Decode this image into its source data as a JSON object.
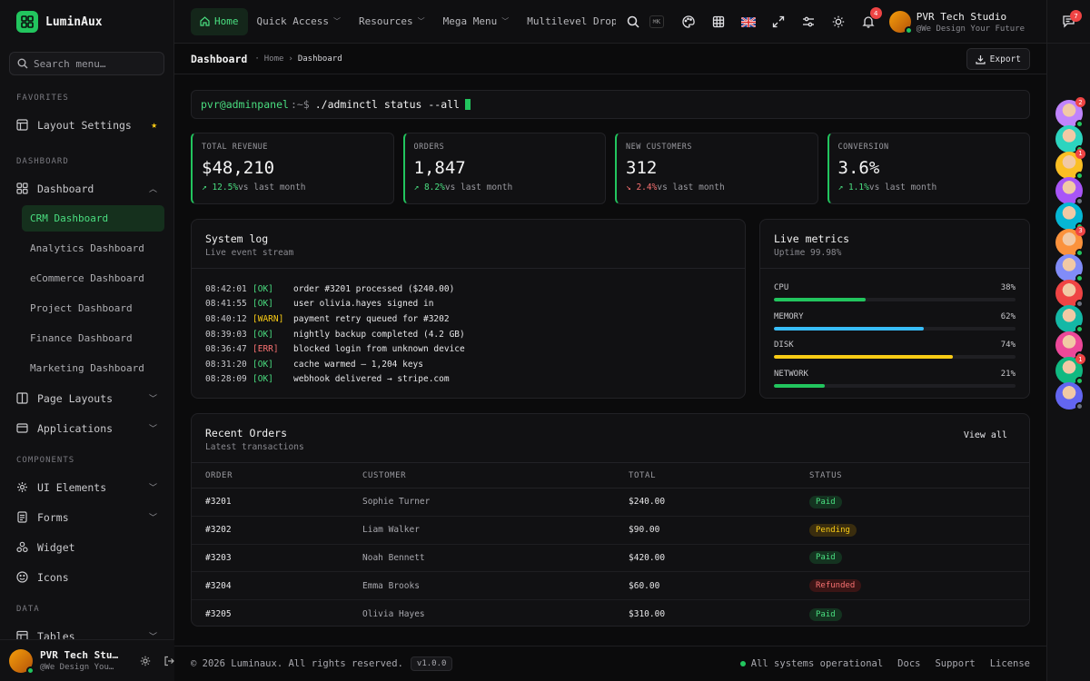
{
  "brand": {
    "name": "LuminAux"
  },
  "search": {
    "placeholder": "Search menu…"
  },
  "sidebar": {
    "favorites_title": "FAVORITES",
    "layout_settings": "Layout Settings",
    "dashboard_title": "DASHBOARD",
    "dashboard": "Dashboard",
    "sub_items": [
      "CRM Dashboard",
      "Analytics Dashboard",
      "eCommerce Dashboard",
      "Project Dashboard",
      "Finance Dashboard",
      "Marketing Dashboard"
    ],
    "page_layouts": "Page Layouts",
    "applications": "Applications",
    "components_title": "COMPONENTS",
    "ui_elements": "UI Elements",
    "forms": "Forms",
    "widget": "Widget",
    "icons": "Icons",
    "data_title": "DATA",
    "tables": "Tables",
    "user_name": "PVR Tech Stu…",
    "user_sub": "@We Design You…"
  },
  "topnav": {
    "home": "Home",
    "quick_access": "Quick Access",
    "resources": "Resources",
    "mega_menu": "Mega Menu",
    "multilevel": "Multilevel Drop",
    "kbd": "⌘K",
    "notif_count": "4",
    "user_name": "PVR Tech Studio",
    "user_sub": "@We Design Your Future"
  },
  "rail": {
    "chat_count": "7",
    "avatars": [
      {
        "badge": "2",
        "status": "#22c55e",
        "color": "#c084fc"
      },
      {
        "badge": "",
        "status": "#22c55e",
        "color": "#2dd4bf"
      },
      {
        "badge": "1",
        "status": "#22c55e",
        "color": "#fbbf24"
      },
      {
        "badge": "",
        "status": "#6b7280",
        "color": "#a855f7"
      },
      {
        "badge": "",
        "status": "#22c55e",
        "color": "#06b6d4"
      },
      {
        "badge": "3",
        "status": "#22c55e",
        "color": "#fb923c"
      },
      {
        "badge": "",
        "status": "#22c55e",
        "color": "#818cf8"
      },
      {
        "badge": "",
        "status": "#6b7280",
        "color": "#ef4444"
      },
      {
        "badge": "",
        "status": "#22c55e",
        "color": "#14b8a6"
      },
      {
        "badge": "",
        "status": "#6b7280",
        "color": "#ec4899"
      },
      {
        "badge": "1",
        "status": "#22c55e",
        "color": "#10b981"
      },
      {
        "badge": "",
        "status": "#6b7280",
        "color": "#6366f1"
      }
    ]
  },
  "subheader": {
    "title": "Dashboard",
    "crumb_home": "Home",
    "crumb_current": "Dashboard",
    "export": "Export"
  },
  "terminal": {
    "user": "pvr@adminpanel",
    "prompt": ":~$",
    "command": "./adminctl status --all"
  },
  "stats": [
    {
      "label": "TOTAL REVENUE",
      "value": "$48,210",
      "change": "12.5%",
      "dir": "up",
      "suffix": "vs last month"
    },
    {
      "label": "ORDERS",
      "value": "1,847",
      "change": "8.2%",
      "dir": "up",
      "suffix": "vs last month"
    },
    {
      "label": "NEW CUSTOMERS",
      "value": "312",
      "change": "2.4%",
      "dir": "down",
      "suffix": "vs last month"
    },
    {
      "label": "CONVERSION",
      "value": "3.6%",
      "change": "1.1%",
      "dir": "up",
      "suffix": "vs last month"
    }
  ],
  "system_log": {
    "title": "System log",
    "subtitle": "Live event stream",
    "entries": [
      {
        "time": "08:42:01",
        "level": "[OK]",
        "type": "ok",
        "msg": "order #3201 processed ($240.00)"
      },
      {
        "time": "08:41:55",
        "level": "[OK]",
        "type": "ok",
        "msg": "user olivia.hayes signed in"
      },
      {
        "time": "08:40:12",
        "level": "[WARN]",
        "type": "warn",
        "msg": "payment retry queued for #3202"
      },
      {
        "time": "08:39:03",
        "level": "[OK]",
        "type": "ok",
        "msg": "nightly backup completed (4.2 GB)"
      },
      {
        "time": "08:36:47",
        "level": "[ERR]",
        "type": "err",
        "msg": "blocked login from unknown device"
      },
      {
        "time": "08:31:20",
        "level": "[OK]",
        "type": "ok",
        "msg": "cache warmed — 1,204 keys"
      },
      {
        "time": "08:28:09",
        "level": "[OK]",
        "type": "ok",
        "msg": "webhook delivered → stripe.com"
      }
    ]
  },
  "live_metrics": {
    "title": "Live metrics",
    "subtitle": "Uptime 99.98%",
    "items": [
      {
        "label": "CPU",
        "value": "38%",
        "pct": 38,
        "color": "#22c55e"
      },
      {
        "label": "MEMORY",
        "value": "62%",
        "pct": 62,
        "color": "#38bdf8"
      },
      {
        "label": "DISK",
        "value": "74%",
        "pct": 74,
        "color": "#facc15"
      },
      {
        "label": "NETWORK",
        "value": "21%",
        "pct": 21,
        "color": "#22c55e"
      }
    ]
  },
  "orders": {
    "title": "Recent Orders",
    "subtitle": "Latest transactions",
    "view_all": "View all",
    "columns": [
      "ORDER",
      "CUSTOMER",
      "TOTAL",
      "STATUS"
    ],
    "rows": [
      {
        "order": "#3201",
        "customer": "Sophie Turner",
        "total": "$240.00",
        "status": "Paid",
        "cls": "paid"
      },
      {
        "order": "#3202",
        "customer": "Liam Walker",
        "total": "$90.00",
        "status": "Pending",
        "cls": "pending"
      },
      {
        "order": "#3203",
        "customer": "Noah Bennett",
        "total": "$420.00",
        "status": "Paid",
        "cls": "paid"
      },
      {
        "order": "#3204",
        "customer": "Emma Brooks",
        "total": "$60.00",
        "status": "Refunded",
        "cls": "refunded"
      },
      {
        "order": "#3205",
        "customer": "Olivia Hayes",
        "total": "$310.00",
        "status": "Paid",
        "cls": "paid"
      }
    ]
  },
  "footer": {
    "copyright": "© 2026 Luminaux. All rights reserved.",
    "version": "v1.0.0",
    "status": "All systems operational",
    "docs": "Docs",
    "support": "Support",
    "license": "License"
  }
}
